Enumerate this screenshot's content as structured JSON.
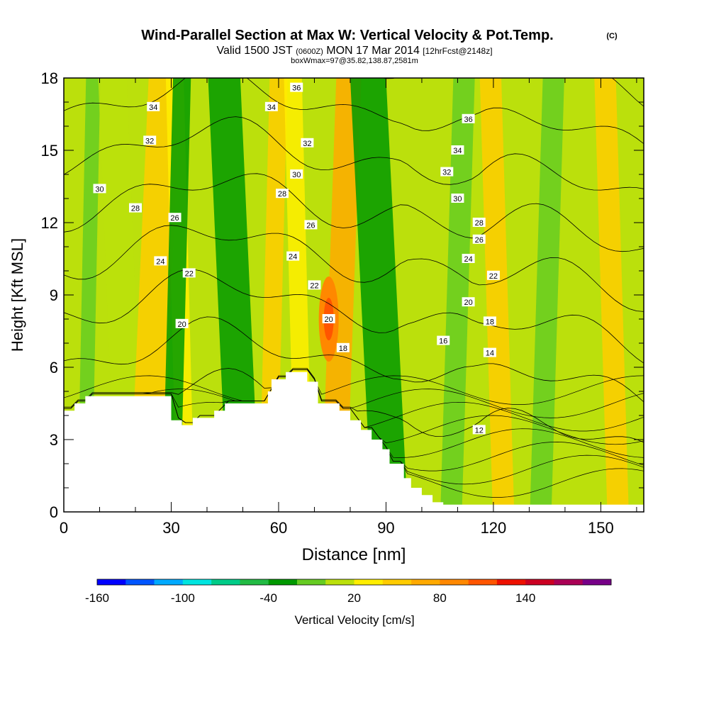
{
  "title": "Wind-Parallel Section at Max W: Vertical Velocity & Pot.Temp.",
  "copyright_mark": "(C)",
  "subtitle_parts": [
    "Valid 1500 JST",
    "(0600Z)",
    "MON 17 Mar 2014",
    "[12hrFcst@2148z]"
  ],
  "subtitle2": "boxWmax=97@35.82,138.87,2581m",
  "chart_data": {
    "type": "contour",
    "title": "Wind-Parallel Section at Max W: Vertical Velocity & Pot.Temp.",
    "xlabel": "Distance [nm]",
    "ylabel": "Height [Kft MSL]",
    "xlim": [
      0,
      162
    ],
    "ylim": [
      0,
      18
    ],
    "x_ticks": [
      0,
      30,
      60,
      90,
      120,
      150
    ],
    "y_ticks": [
      0,
      3,
      6,
      9,
      12,
      15,
      18
    ],
    "terrain": {
      "x": [
        0,
        3,
        3,
        6,
        6,
        30,
        30,
        33,
        33,
        36,
        36,
        42,
        42,
        45,
        45,
        57,
        57,
        58,
        58,
        62,
        62,
        68,
        68,
        71,
        71,
        77,
        77,
        80,
        80,
        83,
        83,
        86,
        86,
        89,
        89,
        91,
        91,
        95,
        95,
        97,
        97,
        100,
        100,
        103,
        103,
        106,
        106,
        162
      ],
      "y": [
        4.2,
        4.2,
        4.5,
        4.5,
        4.8,
        4.8,
        3.8,
        3.8,
        3.6,
        3.6,
        3.9,
        3.9,
        4.2,
        4.2,
        4.5,
        4.5,
        5.0,
        5.0,
        5.5,
        5.5,
        5.8,
        5.8,
        5.4,
        5.4,
        4.5,
        4.5,
        4.2,
        4.2,
        3.8,
        3.8,
        3.4,
        3.4,
        3.0,
        3.0,
        2.6,
        2.6,
        2.0,
        2.0,
        1.4,
        1.4,
        1.0,
        1.0,
        0.7,
        0.7,
        0.4,
        0.4,
        0.3,
        0.3
      ]
    },
    "w_bands": [
      {
        "x": 5,
        "w": 4,
        "value": -20
      },
      {
        "x": 12,
        "w": 8,
        "value": 0
      },
      {
        "x": 21,
        "w": 9,
        "value": 40
      },
      {
        "x": 30,
        "w": 5,
        "value": 20
      },
      {
        "x": 29,
        "w": 5,
        "value": -40
      },
      {
        "x": 43,
        "w": 9,
        "value": -40
      },
      {
        "x": 56,
        "w": 5,
        "value": 40
      },
      {
        "x": 63,
        "w": 5,
        "value": 20
      },
      {
        "x": 74,
        "w": 7,
        "value": 60
      },
      {
        "x": 83,
        "w": 10,
        "value": -40
      },
      {
        "x": 107,
        "w": 6,
        "value": -20
      },
      {
        "x": 118,
        "w": 6,
        "value": 40
      },
      {
        "x": 132,
        "w": 6,
        "value": -20
      },
      {
        "x": 150,
        "w": 6,
        "value": 40
      }
    ],
    "w_max_point": {
      "x": 74,
      "y": 8.0,
      "value": 97
    },
    "theta_contour_labels": [
      {
        "x": 25,
        "y": 16.8,
        "text": "34"
      },
      {
        "x": 24,
        "y": 15.4,
        "text": "32"
      },
      {
        "x": 10,
        "y": 13.4,
        "text": "30"
      },
      {
        "x": 20,
        "y": 12.6,
        "text": "28"
      },
      {
        "x": 31,
        "y": 12.2,
        "text": "26"
      },
      {
        "x": 27,
        "y": 10.4,
        "text": "24"
      },
      {
        "x": 35,
        "y": 9.9,
        "text": "22"
      },
      {
        "x": 33,
        "y": 7.8,
        "text": "20"
      },
      {
        "x": 65,
        "y": 17.6,
        "text": "36"
      },
      {
        "x": 58,
        "y": 16.8,
        "text": "34"
      },
      {
        "x": 68,
        "y": 15.3,
        "text": "32"
      },
      {
        "x": 65,
        "y": 14.0,
        "text": "30"
      },
      {
        "x": 61,
        "y": 13.2,
        "text": "28"
      },
      {
        "x": 69,
        "y": 11.9,
        "text": "26"
      },
      {
        "x": 64,
        "y": 10.6,
        "text": "24"
      },
      {
        "x": 70,
        "y": 9.4,
        "text": "22"
      },
      {
        "x": 74,
        "y": 8.0,
        "text": "20"
      },
      {
        "x": 78,
        "y": 6.8,
        "text": "18"
      },
      {
        "x": 113,
        "y": 16.3,
        "text": "36"
      },
      {
        "x": 110,
        "y": 15.0,
        "text": "34"
      },
      {
        "x": 107,
        "y": 14.1,
        "text": "32"
      },
      {
        "x": 110,
        "y": 13.0,
        "text": "30"
      },
      {
        "x": 116,
        "y": 12.0,
        "text": "28"
      },
      {
        "x": 116,
        "y": 11.3,
        "text": "26"
      },
      {
        "x": 113,
        "y": 10.5,
        "text": "24"
      },
      {
        "x": 120,
        "y": 9.8,
        "text": "22"
      },
      {
        "x": 113,
        "y": 8.7,
        "text": "20"
      },
      {
        "x": 119,
        "y": 7.9,
        "text": "18"
      },
      {
        "x": 106,
        "y": 7.1,
        "text": "16"
      },
      {
        "x": 119,
        "y": 6.6,
        "text": "14"
      },
      {
        "x": 116,
        "y": 3.4,
        "text": "12"
      }
    ],
    "theta_levels": [
      12,
      14,
      16,
      18,
      20,
      22,
      24,
      26,
      28,
      30,
      32,
      34,
      36
    ],
    "colorbar": {
      "label": "Vertical Velocity [cm/s]",
      "tick_labels": [
        "-160",
        "-100",
        "-40",
        "20",
        "80",
        "140"
      ],
      "colors": [
        "#0000ff",
        "#0055ff",
        "#00aaff",
        "#00e5e0",
        "#00cc88",
        "#22bb44",
        "#009900",
        "#66cc22",
        "#bbe00c",
        "#ffee00",
        "#ffcc00",
        "#ffaa00",
        "#ff8800",
        "#ff5500",
        "#ee1100",
        "#cc0022",
        "#aa0055",
        "#770088"
      ]
    }
  }
}
